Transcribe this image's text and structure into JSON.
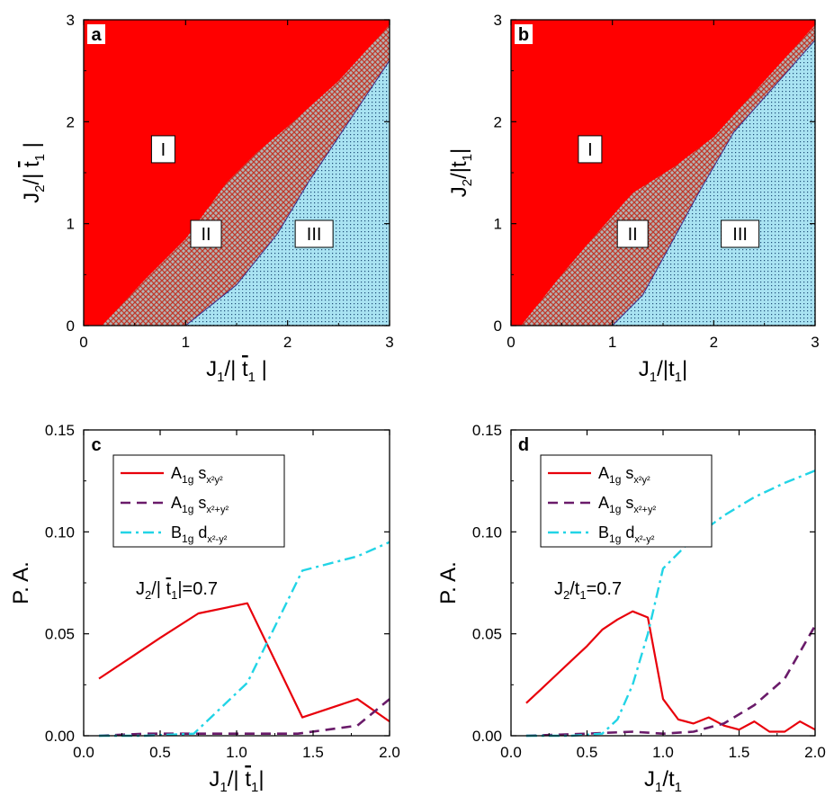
{
  "colors": {
    "region_I": "#ff0000",
    "region_II_base": "#b3b3b3",
    "region_II_hatch": "#c0392b",
    "region_III_base": "#a9e3f2",
    "region_III_dots": "#1f4e79",
    "series_s_xy": "#e8000b",
    "series_s_x2y2": "#6a1b6a",
    "series_d": "#22d4e6"
  },
  "chart_data": [
    {
      "type": "heatmap",
      "panel_letter": "a",
      "xlabel_base": "J",
      "xlabel_sub": "1",
      "xlabel_rest": "/| ",
      "xlabel_t": "t",
      "xlabel_t_sub": "1",
      "xlabel_end": " |",
      "ylabel_base": "J",
      "ylabel_sub": "2",
      "ylabel_rest": "/| ",
      "ylabel_t": "t",
      "ylabel_t_sub": "1",
      "ylabel_end": " |",
      "xlim": [
        0,
        3
      ],
      "ylim": [
        0,
        3
      ],
      "xticks": [
        "0",
        "1",
        "2",
        "3"
      ],
      "yticks": [
        "0",
        "1",
        "2",
        "3"
      ],
      "regions": [
        {
          "label": "I",
          "label_at": [
            0.78,
            1.73
          ]
        },
        {
          "label": "II",
          "label_at": [
            1.2,
            0.9
          ]
        },
        {
          "label": "III",
          "label_at": [
            2.26,
            0.9
          ]
        }
      ],
      "boundary_I_II": [
        [
          0.18,
          0
        ],
        [
          0.6,
          0.45
        ],
        [
          1.0,
          0.85
        ],
        [
          1.4,
          1.4
        ],
        [
          1.7,
          1.7
        ],
        [
          2.0,
          1.95
        ],
        [
          2.5,
          2.4
        ],
        [
          3.0,
          2.95
        ]
      ],
      "boundary_II_III": [
        [
          1.0,
          0
        ],
        [
          1.5,
          0.4
        ],
        [
          1.9,
          0.9
        ],
        [
          2.2,
          1.4
        ],
        [
          2.6,
          2.0
        ],
        [
          3.0,
          2.6
        ]
      ]
    },
    {
      "type": "heatmap",
      "panel_letter": "b",
      "xlabel_base": "J",
      "xlabel_sub": "1",
      "xlabel_rest": "/|",
      "xlabel_t": "t",
      "xlabel_t_sub": "1",
      "xlabel_end": "|",
      "ylabel_base": "J",
      "ylabel_sub": "2",
      "ylabel_rest": "/|",
      "ylabel_t": "t",
      "ylabel_t_sub": "1",
      "ylabel_end": "|",
      "xlim": [
        0,
        3
      ],
      "ylim": [
        0,
        3
      ],
      "xticks": [
        "0",
        "1",
        "2",
        "3"
      ],
      "yticks": [
        "0",
        "1",
        "2",
        "3"
      ],
      "regions": [
        {
          "label": "I",
          "label_at": [
            0.78,
            1.73
          ]
        },
        {
          "label": "II",
          "label_at": [
            1.2,
            0.9
          ]
        },
        {
          "label": "III",
          "label_at": [
            2.26,
            0.9
          ]
        }
      ],
      "boundary_I_II": [
        [
          0.1,
          0
        ],
        [
          0.5,
          0.5
        ],
        [
          0.8,
          0.85
        ],
        [
          1.2,
          1.3
        ],
        [
          1.6,
          1.55
        ],
        [
          2.0,
          1.85
        ],
        [
          2.5,
          2.4
        ],
        [
          3.0,
          2.95
        ]
      ],
      "boundary_II_III": [
        [
          1.0,
          0
        ],
        [
          1.3,
          0.3
        ],
        [
          1.55,
          0.75
        ],
        [
          1.85,
          1.3
        ],
        [
          2.2,
          1.9
        ],
        [
          2.6,
          2.35
        ],
        [
          3.0,
          2.8
        ]
      ]
    },
    {
      "type": "line",
      "panel_letter": "c",
      "xlabel_base": "J",
      "xlabel_sub": "1",
      "xlabel_rest": "/| ",
      "xlabel_t": "t",
      "xlabel_t_sub": "1",
      "xlabel_end": "|",
      "ylabel": "P. A.",
      "xlim": [
        0,
        2.0
      ],
      "ylim": [
        0,
        0.15
      ],
      "xticks": [
        "0.0",
        "0.5",
        "1.0",
        "1.5",
        "2.0"
      ],
      "yticks": [
        "0.00",
        "0.05",
        "0.10",
        "0.15"
      ],
      "annotation": {
        "base": "J",
        "sub": "2",
        "rest": "/| ",
        "t": "t",
        "t_sub": "1",
        "end": "|=0.7"
      },
      "legend_placement": "top-left",
      "series": [
        {
          "prefix": "A",
          "prefix_sub": "1g",
          "func": "s",
          "func_sub": "x²y²",
          "x": [
            0.1,
            0.3,
            0.5,
            0.75,
            1.07,
            1.43,
            1.79,
            2.0
          ],
          "y": [
            0.028,
            0.038,
            0.048,
            0.06,
            0.065,
            0.009,
            0.018,
            0.007
          ]
        },
        {
          "prefix": "A",
          "prefix_sub": "1g",
          "func": "s",
          "func_sub": "x²+y²",
          "x": [
            0.1,
            0.4,
            0.7,
            1.0,
            1.4,
            1.79,
            2.0
          ],
          "y": [
            0.0,
            0.001,
            0.001,
            0.001,
            0.001,
            0.005,
            0.018
          ]
        },
        {
          "prefix": "B",
          "prefix_sub": "1g",
          "func": "d",
          "func_sub": "x²-y²",
          "x": [
            0.1,
            0.4,
            0.72,
            1.07,
            1.43,
            1.79,
            2.0
          ],
          "y": [
            0.0,
            0.0,
            0.001,
            0.026,
            0.081,
            0.088,
            0.095
          ]
        }
      ]
    },
    {
      "type": "line",
      "panel_letter": "d",
      "xlabel_base": "J",
      "xlabel_sub": "1",
      "xlabel_rest": "/",
      "xlabel_t": "t",
      "xlabel_t_sub": "1",
      "xlabel_end": "",
      "ylabel": "P. A.",
      "xlim": [
        0,
        2.0
      ],
      "ylim": [
        0,
        0.15
      ],
      "xticks": [
        "0.0",
        "0.5",
        "1.0",
        "1.5",
        "2.0"
      ],
      "yticks": [
        "0.00",
        "0.05",
        "0.10",
        "0.15"
      ],
      "annotation": {
        "base": "J",
        "sub": "2",
        "rest": "/",
        "t": "t",
        "t_sub": "1",
        "end": "=0.7"
      },
      "legend_placement": "top-left",
      "series": [
        {
          "prefix": "A",
          "prefix_sub": "1g",
          "func": "s",
          "func_sub": "x²y²",
          "x": [
            0.1,
            0.2,
            0.3,
            0.4,
            0.5,
            0.6,
            0.7,
            0.8,
            0.9,
            1.0,
            1.1,
            1.2,
            1.3,
            1.4,
            1.5,
            1.6,
            1.7,
            1.8,
            1.9,
            2.0
          ],
          "y": [
            0.016,
            0.023,
            0.03,
            0.037,
            0.044,
            0.052,
            0.057,
            0.061,
            0.058,
            0.018,
            0.008,
            0.006,
            0.009,
            0.005,
            0.003,
            0.007,
            0.002,
            0.002,
            0.007,
            0.003
          ]
        },
        {
          "prefix": "A",
          "prefix_sub": "1g",
          "func": "s",
          "func_sub": "x²+y²",
          "x": [
            0.1,
            0.5,
            0.8,
            1.0,
            1.2,
            1.4,
            1.6,
            1.8,
            2.0
          ],
          "y": [
            0.0,
            0.001,
            0.002,
            0.001,
            0.002,
            0.006,
            0.015,
            0.028,
            0.054
          ]
        },
        {
          "prefix": "B",
          "prefix_sub": "1g",
          "func": "d",
          "func_sub": "x²-y²",
          "x": [
            0.1,
            0.4,
            0.6,
            0.7,
            0.8,
            0.9,
            1.0,
            1.2,
            1.4,
            1.6,
            1.8,
            2.0
          ],
          "y": [
            0.0,
            0.0,
            0.001,
            0.008,
            0.025,
            0.05,
            0.082,
            0.097,
            0.108,
            0.117,
            0.124,
            0.13
          ]
        }
      ]
    }
  ]
}
